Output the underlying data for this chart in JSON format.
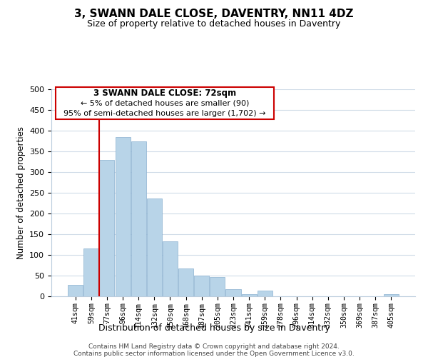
{
  "title": "3, SWANN DALE CLOSE, DAVENTRY, NN11 4DZ",
  "subtitle": "Size of property relative to detached houses in Daventry",
  "xlabel": "Distribution of detached houses by size in Daventry",
  "ylabel": "Number of detached properties",
  "bar_labels": [
    "41sqm",
    "59sqm",
    "77sqm",
    "96sqm",
    "114sqm",
    "132sqm",
    "150sqm",
    "168sqm",
    "187sqm",
    "205sqm",
    "223sqm",
    "241sqm",
    "259sqm",
    "278sqm",
    "296sqm",
    "314sqm",
    "332sqm",
    "350sqm",
    "369sqm",
    "387sqm",
    "405sqm"
  ],
  "bar_values": [
    28,
    116,
    330,
    385,
    375,
    237,
    133,
    68,
    50,
    46,
    18,
    6,
    13,
    0,
    0,
    0,
    0,
    0,
    0,
    0,
    5
  ],
  "bar_color": "#b8d4e8",
  "bar_edge_color": "#8ab0d0",
  "vline_color": "#cc0000",
  "annotation_title": "3 SWANN DALE CLOSE: 72sqm",
  "annotation_line1": "← 5% of detached houses are smaller (90)",
  "annotation_line2": "95% of semi-detached houses are larger (1,702) →",
  "annotation_box_edge": "#cc0000",
  "ylim": [
    0,
    500
  ],
  "yticks": [
    0,
    50,
    100,
    150,
    200,
    250,
    300,
    350,
    400,
    450,
    500
  ],
  "footer1": "Contains HM Land Registry data © Crown copyright and database right 2024.",
  "footer2": "Contains public sector information licensed under the Open Government Licence v3.0.",
  "grid_color": "#d0dce8"
}
